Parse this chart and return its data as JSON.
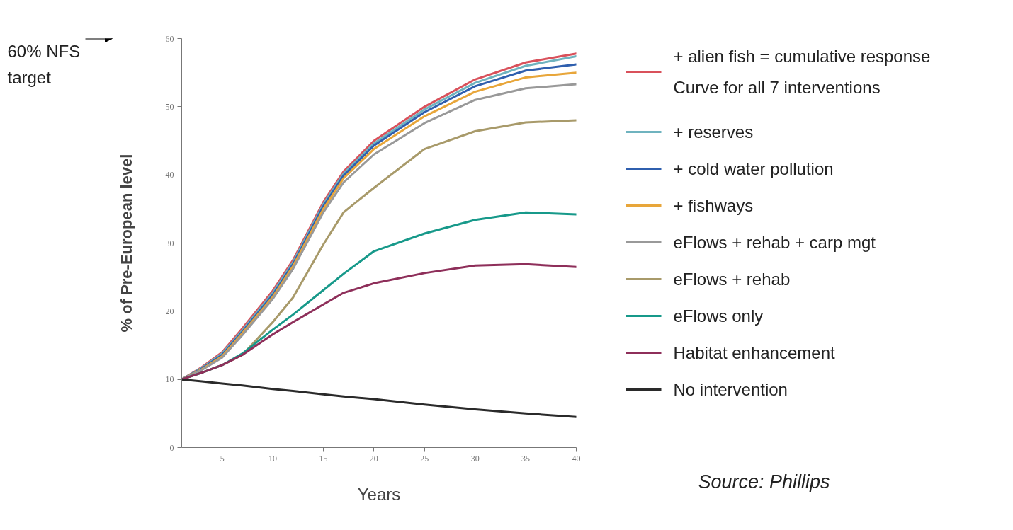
{
  "chart_data": {
    "type": "line",
    "xlabel": "Years",
    "ylabel": "% of Pre-European level",
    "x": [
      1,
      3,
      5,
      7,
      10,
      12,
      15,
      17,
      20,
      25,
      30,
      35,
      40
    ],
    "xlim": [
      1,
      40
    ],
    "xticks": [
      5,
      10,
      15,
      20,
      25,
      30,
      35,
      40
    ],
    "ylim": [
      0,
      60
    ],
    "yticks": [
      0,
      10,
      20,
      30,
      40,
      50,
      60
    ],
    "grid": false,
    "legend": "right",
    "line_style": "solid",
    "marker": "none",
    "series": [
      {
        "name": "+ alien fish = cumulative response Curve for all 7 interventions",
        "color": "#d9515b",
        "values": [
          10,
          11.8,
          14,
          17.5,
          23,
          27.5,
          36,
          40.5,
          45,
          50,
          54,
          56.5,
          57.8
        ]
      },
      {
        "name": "+ reserves",
        "color": "#6fb3bf",
        "values": [
          10,
          11.7,
          13.8,
          17.2,
          22.7,
          27.2,
          35.7,
          40.2,
          44.6,
          49.6,
          53.5,
          56,
          57.4
        ]
      },
      {
        "name": "+ cold water pollution",
        "color": "#2f5fae",
        "values": [
          10,
          11.6,
          13.6,
          17,
          22.4,
          26.9,
          35.4,
          39.9,
          44.3,
          49.2,
          53,
          55.3,
          56.2
        ]
      },
      {
        "name": "+ fishways",
        "color": "#e8a63a",
        "values": [
          10,
          11.5,
          13.4,
          16.8,
          22.1,
          26.6,
          35,
          39.5,
          43.8,
          48.6,
          52.2,
          54.3,
          55.0
        ]
      },
      {
        "name": "eFlows + rehab + carp mgt",
        "color": "#999999",
        "values": [
          10,
          11.4,
          13.2,
          16.5,
          21.8,
          26.2,
          34.5,
          38.9,
          43,
          47.6,
          51,
          52.7,
          53.3
        ]
      },
      {
        "name": "eFlows + rehab",
        "color": "#a89a6a",
        "values": [
          10,
          11,
          12.1,
          13.6,
          18.4,
          22,
          29.8,
          34.5,
          38.1,
          43.8,
          46.4,
          47.7,
          48.0
        ]
      },
      {
        "name": "eFlows only",
        "color": "#17998a",
        "values": [
          10,
          11,
          12.1,
          13.8,
          17.3,
          19.5,
          23.1,
          25.5,
          28.8,
          31.4,
          33.4,
          34.5,
          34.2
        ]
      },
      {
        "name": "Habitat enhancement",
        "color": "#8e2f5a",
        "values": [
          10,
          11,
          12.1,
          13.6,
          16.6,
          18.4,
          21,
          22.7,
          24.1,
          25.6,
          26.7,
          26.9,
          26.5
        ]
      },
      {
        "name": "No intervention",
        "color": "#2a2a2a",
        "values": [
          10,
          9.7,
          9.4,
          9.1,
          8.6,
          8.3,
          7.8,
          7.5,
          7.1,
          6.3,
          5.6,
          5.0,
          4.5
        ]
      }
    ],
    "annotations": [
      "60% NFS target",
      "Source: Phillips"
    ]
  }
}
